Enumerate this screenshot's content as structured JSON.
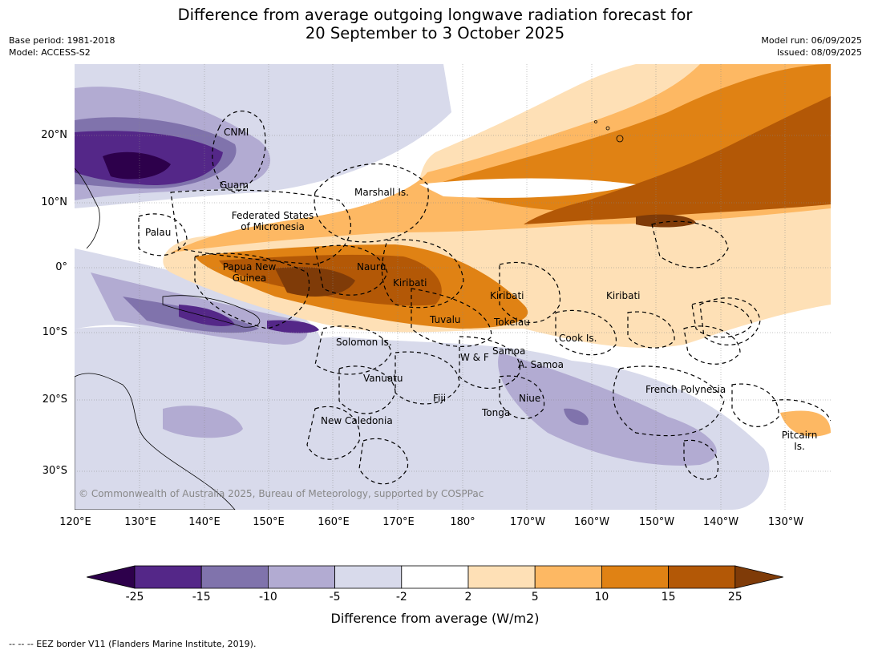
{
  "title_line1": "Difference from average outgoing longwave radiation forecast for",
  "title_line2": "20 September to 3 October 2025",
  "base_period": "Base period: 1981-2018",
  "model": "Model: ACCESS-S2",
  "model_run": "Model run: 06/09/2025",
  "issued": "Issued: 08/09/2025",
  "lat_labels": [
    "20°N",
    "10°N",
    "0°",
    "10°S",
    "20°S",
    "30°S"
  ],
  "lon_labels": [
    "120°E",
    "130°E",
    "140°E",
    "150°E",
    "160°E",
    "170°E",
    "180°",
    "170°W",
    "160°W",
    "150°W",
    "140°W",
    "130°W"
  ],
  "places": {
    "cnmi": "CNMI",
    "guam": "Guam",
    "marshall": "Marshall Is.",
    "fsm1": "Federated States",
    "fsm2": "of Micronesia",
    "palau": "Palau",
    "png1": "Papua New",
    "png2": "Guinea",
    "nauru": "Nauru",
    "kiribati_w": "Kiribati",
    "kiribati_c": "Kiribati",
    "kiribati_e": "Kiribati",
    "tuvalu": "Tuvalu",
    "tokelau": "Tokelau",
    "cook": "Cook Is.",
    "solomon": "Solomon Is.",
    "samoa": "Samoa",
    "wf": "W & F",
    "asamoa": "A. Samoa",
    "vanuatu": "Vanuatu",
    "fiji": "Fiji",
    "niue": "Niue",
    "tonga": "Tonga",
    "frpoly": "French Polynesia",
    "newcal": "New Caledonia",
    "pitcairn1": "Pitcairn",
    "pitcairn2": "Is."
  },
  "copyright": "© Commonwealth of Australia 2025, Bureau of Meteorology, supported by COSPPac",
  "colorbar": {
    "colors": [
      "#2d004b",
      "#542788",
      "#8073ac",
      "#b2abd2",
      "#d8daeb",
      "#ffffff",
      "#fee0b6",
      "#fdb863",
      "#e08214",
      "#b35806",
      "#7f3b08"
    ],
    "ticks": [
      "-25",
      "-15",
      "-10",
      "-5",
      "-2",
      "2",
      "5",
      "10",
      "15",
      "25"
    ],
    "title": "Difference from average (W/m2)"
  },
  "footnote": "--  --  -- EEZ border V11 (Flanders Marine Institute, 2019)."
}
